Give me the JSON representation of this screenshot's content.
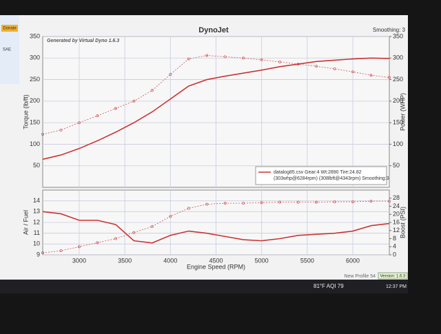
{
  "window": {
    "title": "DynoJet",
    "generated": "Generated by Virtual Dyno 1.6.3",
    "smoothing": "Smoothing: 3",
    "profile": "New Profile 54",
    "version": "Version: 1.6.3"
  },
  "side_panel": {
    "button": "Donate",
    "standard": "SAE"
  },
  "taskbar": {
    "weather": "81°F AQI 79",
    "time": "12:37 PM"
  },
  "chart_data": [
    {
      "type": "line",
      "ylabel": "Torque (lb/ft)",
      "y2label": "Power (WHP)",
      "x": [
        2600,
        2800,
        3000,
        3200,
        3400,
        3600,
        3800,
        4000,
        4200,
        4400,
        4600,
        4800,
        5000,
        5200,
        5400,
        5600,
        5800,
        6000,
        6200,
        6400
      ],
      "xlim": [
        2600,
        6400
      ],
      "xticks": [
        3000,
        3500,
        4000,
        4500,
        5000,
        5500,
        6000
      ],
      "ylim": [
        0,
        350
      ],
      "yticks": [
        50,
        100,
        150,
        200,
        250,
        300,
        350
      ],
      "y2lim": [
        0,
        350
      ],
      "y2ticks": [
        50,
        100,
        150,
        200,
        250,
        300,
        350
      ],
      "grid": true,
      "series": [
        {
          "color": "#d05050",
          "style": "dotted",
          "axis": "y",
          "values": [
            123,
            133,
            150,
            166,
            183,
            200,
            225,
            262,
            298,
            306,
            303,
            300,
            296,
            291,
            286,
            281,
            275,
            268,
            260,
            255
          ]
        },
        {
          "color": "#cc3333",
          "style": "solid",
          "axis": "y2",
          "values": [
            65,
            75,
            90,
            108,
            128,
            150,
            175,
            205,
            235,
            250,
            258,
            265,
            272,
            280,
            286,
            292,
            295,
            298,
            300,
            299
          ]
        }
      ],
      "legend": {
        "corner": "lower right",
        "lines": [
          "datalog85.csv Gear:4 Wt:2890 Tire:24.82",
          "(303whp@6284rpm) (308lbft@4343rpm) Smoothing:3"
        ]
      }
    },
    {
      "type": "line",
      "xlabel": "Engine Speed (RPM)",
      "ylabel": "Air / Fuel",
      "y2label": "Boost (PSI)",
      "x": [
        2600,
        2800,
        3000,
        3200,
        3400,
        3600,
        3800,
        4000,
        4200,
        4400,
        4600,
        4800,
        5000,
        5200,
        5400,
        5600,
        5800,
        6000,
        6200,
        6400
      ],
      "xlim": [
        2600,
        6400
      ],
      "xticks": [
        3000,
        3500,
        4000,
        4500,
        5000,
        5500,
        6000
      ],
      "ylim": [
        9,
        15
      ],
      "yticks": [
        9,
        10,
        11,
        12,
        13,
        14
      ],
      "y2lim": [
        0,
        32
      ],
      "y2ticks": [
        0,
        4,
        8,
        12,
        16,
        20,
        24,
        28
      ],
      "grid": true,
      "series": [
        {
          "color": "#cc3333",
          "style": "solid",
          "axis": "y",
          "values": [
            13,
            12.8,
            12.2,
            12.2,
            11.8,
            10.3,
            10.1,
            10.8,
            11.2,
            11,
            10.7,
            10.4,
            10.3,
            10.5,
            10.8,
            10.9,
            11,
            11.2,
            11.7,
            11.9
          ]
        },
        {
          "color": "#d05050",
          "style": "dotted",
          "axis": "y2",
          "values": [
            1,
            2,
            4,
            6,
            8,
            11,
            14,
            19,
            23,
            25,
            25.5,
            25.5,
            25.8,
            26,
            26,
            26,
            26.2,
            26.2,
            26.5,
            26.5
          ]
        }
      ]
    }
  ]
}
